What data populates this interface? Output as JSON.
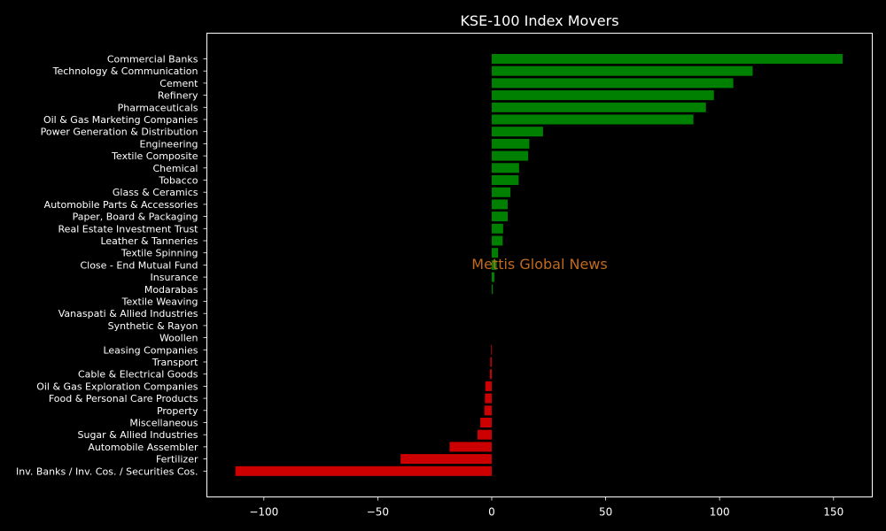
{
  "chart_data": {
    "type": "bar",
    "orientation": "horizontal",
    "title": "KSE-100 Index Movers",
    "xlabel": "",
    "ylabel": "",
    "xlim": [
      -125,
      167
    ],
    "xticks": [
      -100,
      -50,
      0,
      50,
      100,
      150
    ],
    "xtick_labels": [
      "−100",
      "−50",
      "0",
      "50",
      "100",
      "150"
    ],
    "grid": false,
    "positive_color": "#008000",
    "negative_color": "#cc0000",
    "background": "#000000",
    "categories": [
      "Commercial Banks",
      "Technology & Communication",
      "Cement",
      "Refinery",
      "Pharmaceuticals",
      "Oil & Gas Marketing Companies",
      "Power Generation & Distribution",
      "Engineering",
      "Textile Composite",
      "Chemical",
      "Tobacco",
      "Glass & Ceramics",
      "Automobile Parts & Accessories",
      "Paper, Board & Packaging",
      "Real Estate Investment Trust",
      "Leather & Tanneries",
      "Textile Spinning",
      "Close - End Mutual Fund",
      "Insurance",
      "Modarabas",
      "Textile Weaving",
      "Vanaspati & Allied Industries",
      "Synthetic & Rayon",
      "Woollen",
      "Leasing Companies",
      "Transport",
      "Cable & Electrical Goods",
      "Oil & Gas Exploration Companies",
      "Food & Personal Care Products",
      "Property",
      "Miscellaneous",
      "Sugar & Allied Industries",
      "Automobile Assembler",
      "Fertilizer",
      "Inv. Banks / Inv. Cos. / Securities Cos."
    ],
    "values": [
      154,
      114.5,
      106,
      97.5,
      94,
      88.5,
      22.5,
      16.5,
      16,
      12,
      11.8,
      8.2,
      7,
      7,
      5,
      4.8,
      2.8,
      2.2,
      1.2,
      0.5,
      0,
      0,
      0,
      0,
      -0.3,
      -0.6,
      -0.8,
      -2.8,
      -3,
      -3.2,
      -5,
      -6.2,
      -18.5,
      -40,
      -112.5
    ],
    "watermark": "Mettis Global News"
  }
}
